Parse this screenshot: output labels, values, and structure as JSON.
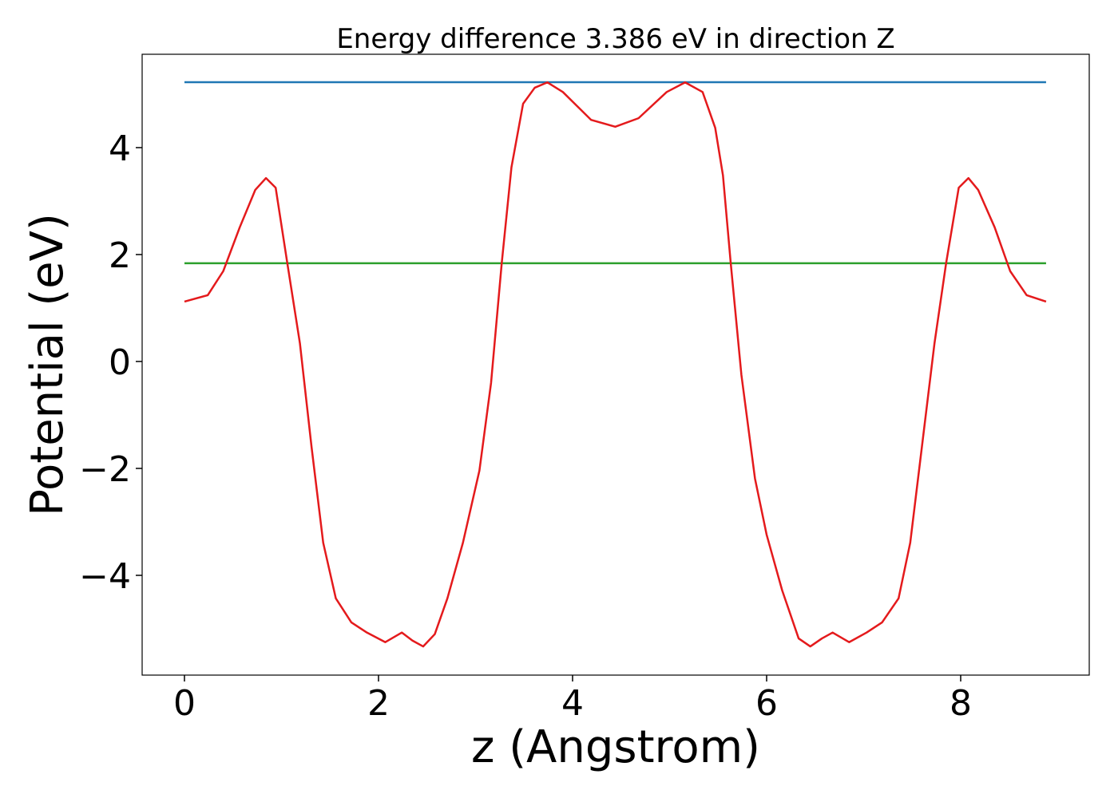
{
  "chart_data": {
    "type": "line",
    "title": "Energy difference 3.386 eV in direction Z",
    "x_label": "z (Angstrom)",
    "y_label": "Potential (eV)",
    "xlim": [
      -0.436,
      9.325
    ],
    "ylim": [
      -5.866,
      5.746
    ],
    "xticks": [
      0,
      2,
      4,
      6,
      8
    ],
    "yticks": [
      {
        "value": -4,
        "label": "−4"
      },
      {
        "value": -2,
        "label": "−2"
      },
      0,
      2,
      4
    ],
    "grid": false,
    "series": [
      {
        "color": "#1f77b4",
        "x": [
          0,
          8.88
        ],
        "values": [
          5.224,
          5.224
        ]
      },
      {
        "color": "#2ca02c",
        "x": [
          0,
          8.88
        ],
        "values": [
          1.838,
          1.838
        ]
      },
      {
        "color": "#e41a1c",
        "x": [
          0,
          0.24,
          0.4,
          0.57,
          0.73,
          0.84,
          0.94,
          1.06,
          1.19,
          1.31,
          1.43,
          1.56,
          1.72,
          1.88,
          2.07,
          2.24,
          2.35,
          2.46,
          2.58,
          2.71,
          2.87,
          3.04,
          3.16,
          3.27,
          3.37,
          3.49,
          3.61,
          3.74,
          3.9,
          4.19,
          4.44,
          4.68,
          4.97,
          5.16,
          5.34,
          5.47,
          5.55,
          5.63,
          5.74,
          5.88,
          6.0,
          6.16,
          6.33,
          6.45,
          6.57,
          6.68,
          6.85,
          7.03,
          7.19,
          7.36,
          7.48,
          7.6,
          7.73,
          7.85,
          7.98,
          8.08,
          8.18,
          8.35,
          8.51,
          8.68,
          8.88
        ],
        "values": [
          1.12,
          1.24,
          1.69,
          2.51,
          3.21,
          3.43,
          3.25,
          1.84,
          0.34,
          -1.6,
          -3.39,
          -4.43,
          -4.88,
          -5.07,
          -5.25,
          -5.07,
          -5.22,
          -5.33,
          -5.1,
          -4.43,
          -3.39,
          -2.04,
          -0.4,
          1.84,
          3.63,
          4.82,
          5.12,
          5.22,
          5.04,
          4.52,
          4.39,
          4.55,
          5.04,
          5.22,
          5.04,
          4.37,
          3.48,
          1.84,
          -0.25,
          -2.19,
          -3.24,
          -4.28,
          -5.18,
          -5.33,
          -5.18,
          -5.07,
          -5.25,
          -5.07,
          -4.88,
          -4.43,
          -3.39,
          -1.6,
          0.34,
          1.84,
          3.25,
          3.43,
          3.21,
          2.51,
          1.69,
          1.24,
          1.12
        ]
      }
    ]
  }
}
